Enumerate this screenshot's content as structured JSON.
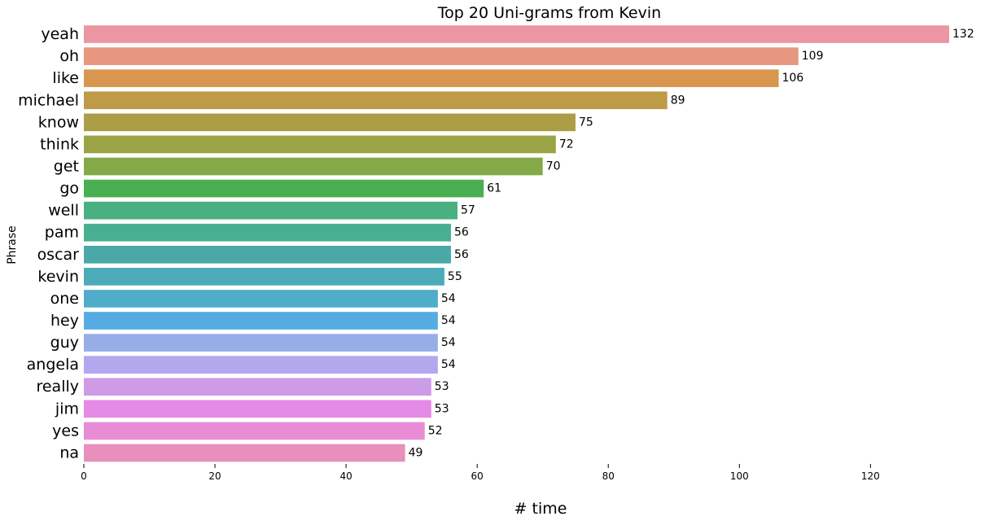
{
  "chart_data": {
    "type": "bar",
    "orientation": "horizontal",
    "title": "Top 20 Uni-grams from Kevin",
    "xlabel": "# time",
    "ylabel": "Phrase",
    "categories": [
      "yeah",
      "oh",
      "like",
      "michael",
      "know",
      "think",
      "get",
      "go",
      "well",
      "pam",
      "oscar",
      "kevin",
      "one",
      "hey",
      "guy",
      "angela",
      "really",
      "jim",
      "yes",
      "na"
    ],
    "values": [
      132,
      109,
      106,
      89,
      75,
      72,
      70,
      61,
      57,
      56,
      56,
      55,
      54,
      54,
      54,
      54,
      53,
      53,
      52,
      49
    ],
    "colors": [
      "#EB96A2",
      "#E7977F",
      "#D8964F",
      "#BD9B47",
      "#AC9E46",
      "#9AA445",
      "#84A948",
      "#49AF50",
      "#49B081",
      "#49AE92",
      "#4AA9A7",
      "#4BABB9",
      "#4FADCA",
      "#56ACE2",
      "#96ADE8",
      "#B4A7ED",
      "#CE9BE7",
      "#E58AE6",
      "#E78CD5",
      "#E88FBC"
    ],
    "xticks": [
      0,
      20,
      40,
      60,
      80,
      100,
      120
    ],
    "xlim": [
      0,
      132
    ],
    "grid": false,
    "legend": "none"
  }
}
